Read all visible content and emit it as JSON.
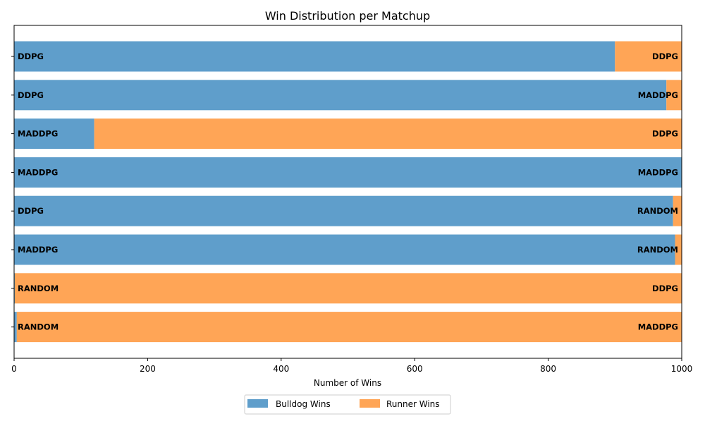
{
  "chart_data": {
    "type": "bar",
    "orientation": "horizontal",
    "stacked": true,
    "title": "Win Distribution per Matchup",
    "xlabel": "Number of Wins",
    "ylabel": "",
    "xlim": [
      0,
      1000
    ],
    "xticks": [
      "0",
      "200",
      "400",
      "600",
      "800",
      "1000"
    ],
    "grid": false,
    "legend_position": "bottom-center",
    "series_colors": {
      "bulldog": "#5f9ecb",
      "runner": "#ffa556"
    },
    "legend": {
      "bulldog": "Bulldog Wins",
      "runner": "Runner Wins"
    },
    "matchups": [
      {
        "bulldog_agent": "DDPG",
        "runner_agent": "DDPG",
        "bulldog_wins": 900,
        "runner_wins": 100
      },
      {
        "bulldog_agent": "DDPG",
        "runner_agent": "MADDPG",
        "bulldog_wins": 977,
        "runner_wins": 23
      },
      {
        "bulldog_agent": "MADDPG",
        "runner_agent": "DDPG",
        "bulldog_wins": 120,
        "runner_wins": 880
      },
      {
        "bulldog_agent": "MADDPG",
        "runner_agent": "MADDPG",
        "bulldog_wins": 1000,
        "runner_wins": 0
      },
      {
        "bulldog_agent": "DDPG",
        "runner_agent": "RANDOM",
        "bulldog_wins": 987,
        "runner_wins": 13
      },
      {
        "bulldog_agent": "MADDPG",
        "runner_agent": "RANDOM",
        "bulldog_wins": 990,
        "runner_wins": 10
      },
      {
        "bulldog_agent": "RANDOM",
        "runner_agent": "DDPG",
        "bulldog_wins": 1,
        "runner_wins": 999
      },
      {
        "bulldog_agent": "RANDOM",
        "runner_agent": "MADDPG",
        "bulldog_wins": 4,
        "runner_wins": 996
      }
    ]
  }
}
